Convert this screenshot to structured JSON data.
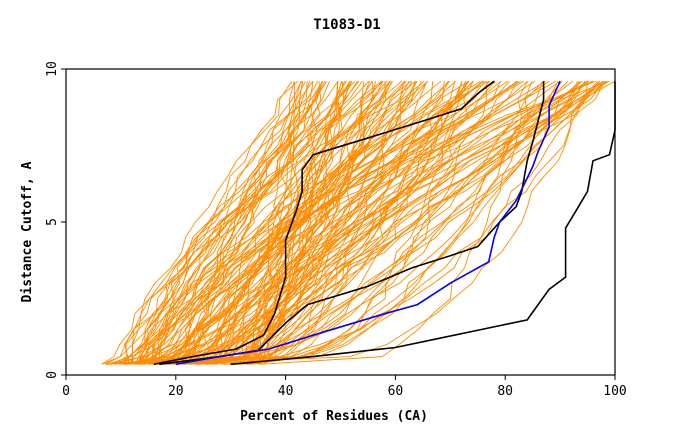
{
  "chart_data": {
    "type": "line",
    "title": "T1083-D1",
    "xlabel": "Percent of Residues (CA)",
    "ylabel": "Distance Cutoff, A",
    "xlim": [
      0,
      100
    ],
    "ylim": [
      0,
      10
    ],
    "xticks": [
      "0",
      "20",
      "40",
      "60",
      "80",
      "100"
    ],
    "yticks": [
      "0",
      "5",
      "10"
    ],
    "grid": false,
    "background_bundle": {
      "color": "#ff8c00",
      "count": 150,
      "start_x_range": [
        7,
        36
      ],
      "end_x_range": [
        41,
        100
      ],
      "start_y": 0.35,
      "end_y": 9.6
    },
    "series": [
      {
        "color": "#000000",
        "values": [
          [
            16,
            0.35
          ],
          [
            23,
            0.6
          ],
          [
            31,
            0.85
          ],
          [
            36,
            1.3
          ],
          [
            38,
            2.0
          ],
          [
            40,
            3.2
          ],
          [
            40,
            4.4
          ],
          [
            42,
            5.4
          ],
          [
            43,
            6.0
          ],
          [
            43,
            6.7
          ],
          [
            45,
            7.2
          ],
          [
            56,
            7.8
          ],
          [
            65,
            8.3
          ],
          [
            72,
            8.7
          ],
          [
            75,
            9.2
          ],
          [
            78,
            9.6
          ]
        ]
      },
      {
        "color": "#000000",
        "values": [
          [
            17,
            0.35
          ],
          [
            28,
            0.6
          ],
          [
            35,
            0.8
          ],
          [
            40,
            1.7
          ],
          [
            44,
            2.3
          ],
          [
            55,
            2.9
          ],
          [
            63,
            3.5
          ],
          [
            70,
            3.9
          ],
          [
            75,
            4.2
          ],
          [
            79,
            5.0
          ],
          [
            82,
            5.5
          ],
          [
            83,
            6.0
          ],
          [
            84,
            7.0
          ],
          [
            85,
            7.6
          ],
          [
            86,
            8.3
          ],
          [
            87,
            9.0
          ],
          [
            87,
            9.6
          ]
        ]
      },
      {
        "color": "#0000ff",
        "values": [
          [
            20,
            0.35
          ],
          [
            28,
            0.6
          ],
          [
            37,
            0.85
          ],
          [
            45,
            1.3
          ],
          [
            58,
            2.0
          ],
          [
            64,
            2.3
          ],
          [
            70,
            3.0
          ],
          [
            77,
            3.7
          ],
          [
            78,
            4.5
          ],
          [
            79,
            5.0
          ],
          [
            82,
            5.7
          ],
          [
            85,
            6.8
          ],
          [
            86,
            7.3
          ],
          [
            88,
            8.1
          ],
          [
            88,
            8.8
          ],
          [
            90,
            9.6
          ]
        ]
      },
      {
        "color": "#000000",
        "values": [
          [
            30,
            0.35
          ],
          [
            45,
            0.6
          ],
          [
            60,
            0.9
          ],
          [
            68,
            1.2
          ],
          [
            76,
            1.5
          ],
          [
            84,
            1.8
          ],
          [
            88,
            2.8
          ],
          [
            91,
            3.2
          ],
          [
            91,
            4.8
          ],
          [
            93,
            5.4
          ],
          [
            95,
            6.0
          ],
          [
            96,
            7.0
          ],
          [
            99,
            7.2
          ],
          [
            100,
            8.0
          ],
          [
            100,
            9.6
          ]
        ]
      }
    ]
  }
}
